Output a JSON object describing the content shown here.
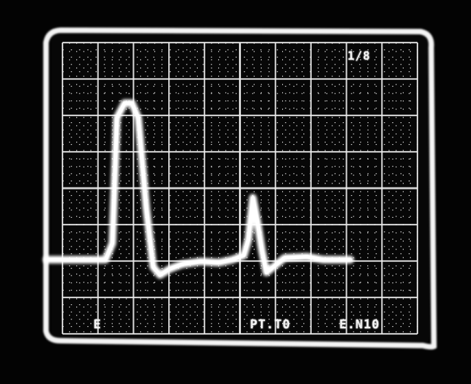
{
  "screen": {
    "bezel_color": "#f4f4f4",
    "background_color": "#060606",
    "grid_color": "#e9e9e9",
    "trace_color": "#ffffff"
  },
  "readouts": {
    "corner": "1/8",
    "channel": "E",
    "time_division": "PT.T0",
    "volts_division": "E.N10"
  },
  "graticule": {
    "horizontal_divisions": 10,
    "vertical_divisions": 8,
    "subdivisions": 5
  },
  "trace": {
    "description_points": [
      [
        0.0,
        0.0
      ],
      [
        1.3,
        0.0
      ],
      [
        1.45,
        0.45
      ],
      [
        1.55,
        3.9
      ],
      [
        1.72,
        4.3
      ],
      [
        1.88,
        4.3
      ],
      [
        2.02,
        3.9
      ],
      [
        2.2,
        1.4
      ],
      [
        2.35,
        -0.2
      ],
      [
        2.5,
        -0.42
      ],
      [
        2.72,
        -0.25
      ],
      [
        3.0,
        -0.12
      ],
      [
        3.4,
        -0.05
      ],
      [
        3.8,
        -0.08
      ],
      [
        4.1,
        0.0
      ],
      [
        4.35,
        0.12
      ],
      [
        4.45,
        0.55
      ],
      [
        4.55,
        1.7
      ],
      [
        4.65,
        1.05
      ],
      [
        4.75,
        0.25
      ],
      [
        4.85,
        -0.35
      ],
      [
        4.98,
        -0.22
      ],
      [
        5.25,
        0.05
      ],
      [
        5.75,
        0.08
      ],
      [
        6.1,
        0.0
      ],
      [
        6.7,
        0.0
      ]
    ]
  }
}
